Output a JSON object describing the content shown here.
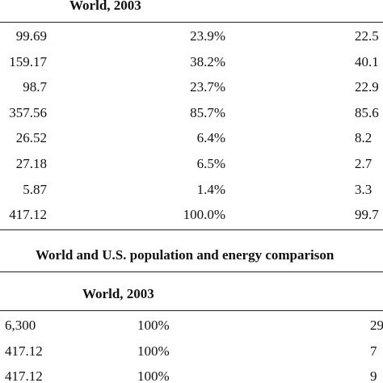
{
  "table1": {
    "header": "World, 2003",
    "rows": [
      {
        "value": "99.69",
        "share": "23.9%",
        "partial": "22.5"
      },
      {
        "value": "159.17",
        "share": "38.2%",
        "partial": "40.1"
      },
      {
        "value": "98.7",
        "share": "23.7%",
        "partial": "22.9"
      },
      {
        "value": "357.56",
        "share": "85.7%",
        "partial": "85.6"
      },
      {
        "value": "26.52",
        "share": "6.4%",
        "partial": "8.2"
      },
      {
        "value": "27.18",
        "share": "6.5%",
        "partial": "2.7"
      },
      {
        "value": "5.87",
        "share": "1.4%",
        "partial": "3.3"
      },
      {
        "value": "417.12",
        "share": "100.0%",
        "partial": "99.7"
      }
    ]
  },
  "table2": {
    "title": "World and U.S. population and energy comparison",
    "header": "World, 2003",
    "rows": [
      {
        "value": "6,300",
        "share": "100%",
        "partial": "29"
      },
      {
        "value": "417.12",
        "share": "100%",
        "partial": "7"
      },
      {
        "value": "417.12",
        "share": "100%",
        "partial": "9"
      }
    ]
  }
}
